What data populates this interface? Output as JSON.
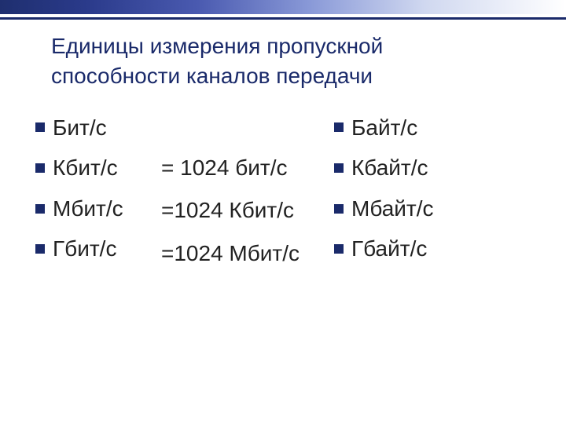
{
  "title": {
    "line1": "Единицы измерения пропускной",
    "line2": "способности каналов передачи"
  },
  "left_units": [
    "Бит/с",
    "Кбит/с",
    "Мбит/с",
    "Гбит/с"
  ],
  "equalities": [
    "= 1024 бит/с",
    "=1024 Кбит/с",
    "=1024 Мбит/с"
  ],
  "right_units": [
    "Байт/с",
    "Кбайт/с",
    "Мбайт/с",
    "Гбайт/с"
  ],
  "colors": {
    "accent": "#1a2a6a",
    "text": "#222222",
    "background": "#ffffff"
  },
  "typography": {
    "title_fontsize": 28,
    "item_fontsize": 28,
    "font_family": "Arial"
  }
}
